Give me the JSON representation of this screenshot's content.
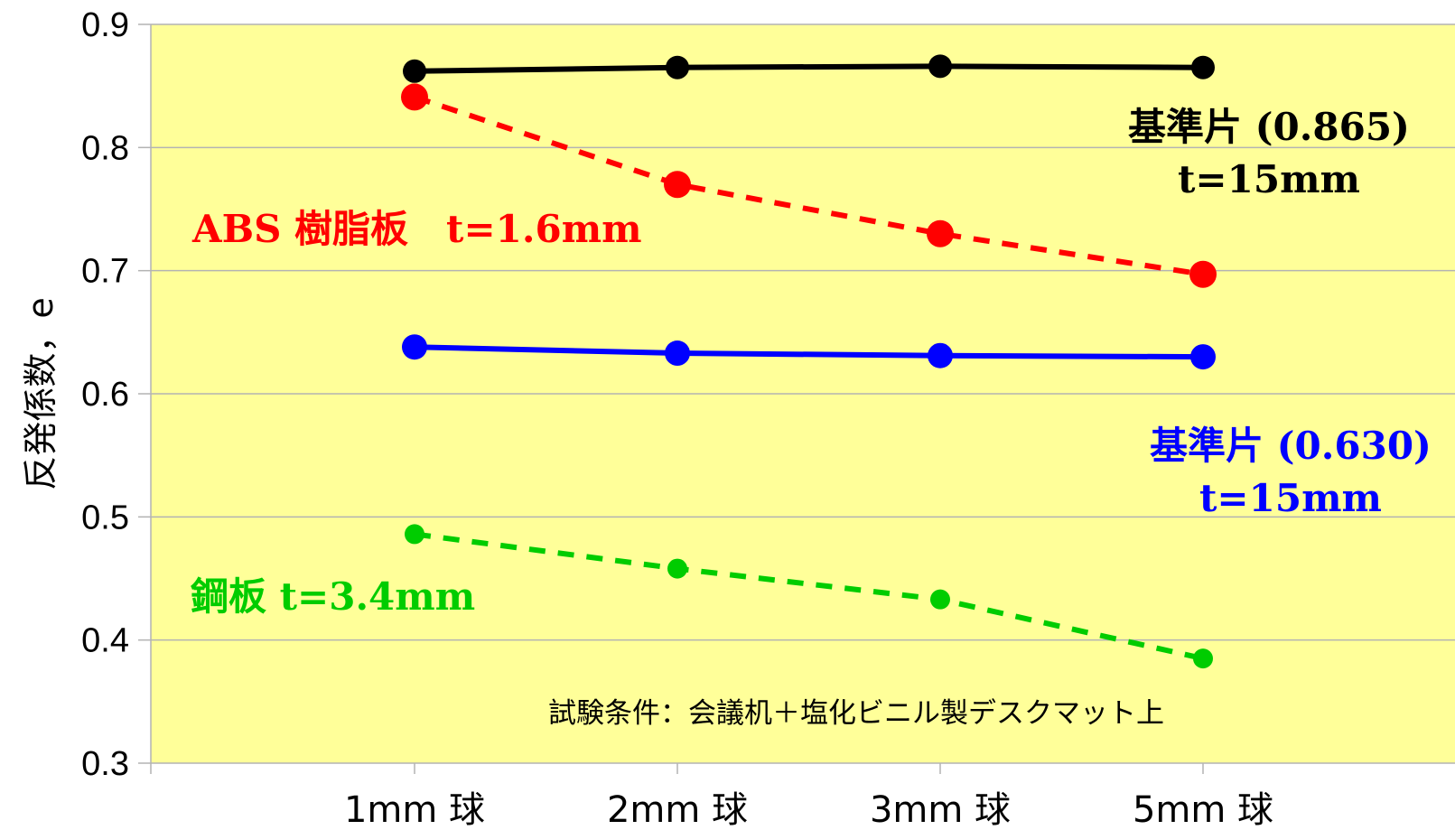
{
  "chart_data": {
    "type": "line",
    "categories": [
      "1mm 球",
      "2mm 球",
      "3mm 球",
      "5mm 球"
    ],
    "ylabel": "反発係数，e",
    "ylim": [
      0.3,
      0.9
    ],
    "yticks": [
      "0.3",
      "0.4",
      "0.5",
      "0.6",
      "0.7",
      "0.8",
      "0.9"
    ],
    "grid": true,
    "plot_background": "#FFFF99",
    "series": [
      {
        "values": [
          0.862,
          0.865,
          0.866,
          0.865
        ],
        "color": "#000000",
        "line_style": "solid",
        "label_lines": [
          "基準片 (0.865)",
          "t=15mm"
        ]
      },
      {
        "values": [
          0.841,
          0.77,
          0.73,
          0.697
        ],
        "color": "#FF0000",
        "line_style": "dashed",
        "label_lines": [
          "ABS 樹脂板　t=1.6mm"
        ]
      },
      {
        "values": [
          0.638,
          0.633,
          0.631,
          0.63
        ],
        "color": "#0000FF",
        "line_style": "solid",
        "label_lines": [
          "基準片 (0.630)",
          "t=15mm"
        ]
      },
      {
        "values": [
          0.486,
          0.458,
          0.433,
          0.385
        ],
        "color": "#00CC00",
        "line_style": "dashed",
        "label_lines": [
          "鋼板 t=3.4mm"
        ]
      }
    ],
    "note": "試験条件：会議机＋塩化ビニル製デスクマット上"
  }
}
